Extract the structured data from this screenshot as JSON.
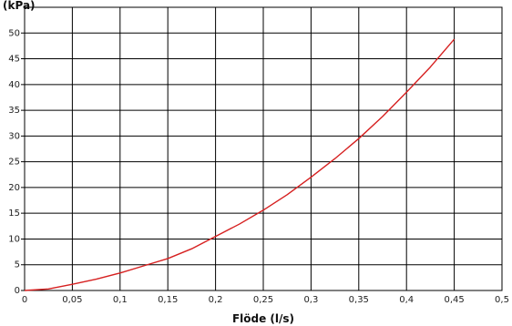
{
  "chart_data": {
    "type": "line",
    "ylabel": "(kPa)",
    "xlabel": "Flöde (l/s)",
    "xlim": [
      0,
      0.5
    ],
    "ylim": [
      0,
      55
    ],
    "grid": true,
    "x_ticks": [
      {
        "value": 0,
        "label": "0"
      },
      {
        "value": 0.05,
        "label": "0,05"
      },
      {
        "value": 0.1,
        "label": "0,1"
      },
      {
        "value": 0.15,
        "label": "0,15"
      },
      {
        "value": 0.2,
        "label": "0,2"
      },
      {
        "value": 0.25,
        "label": "0,25"
      },
      {
        "value": 0.3,
        "label": "0,3"
      },
      {
        "value": 0.35,
        "label": "0,35"
      },
      {
        "value": 0.4,
        "label": "0,4"
      },
      {
        "value": 0.45,
        "label": "0,45"
      },
      {
        "value": 0.5,
        "label": "0,5"
      }
    ],
    "y_ticks": [
      {
        "value": 0,
        "label": "0"
      },
      {
        "value": 5,
        "label": "5"
      },
      {
        "value": 10,
        "label": "10"
      },
      {
        "value": 15,
        "label": "15"
      },
      {
        "value": 20,
        "label": "20"
      },
      {
        "value": 25,
        "label": "25"
      },
      {
        "value": 30,
        "label": "30"
      },
      {
        "value": 35,
        "label": "35"
      },
      {
        "value": 40,
        "label": "40"
      },
      {
        "value": 45,
        "label": "45"
      },
      {
        "value": 50,
        "label": "50"
      }
    ],
    "series": [
      {
        "color": "#d62020",
        "x": [
          0,
          0.025,
          0.05,
          0.075,
          0.1,
          0.125,
          0.15,
          0.175,
          0.2,
          0.225,
          0.25,
          0.275,
          0.3,
          0.325,
          0.35,
          0.375,
          0.4,
          0.425,
          0.45
        ],
        "y": [
          0,
          0.3,
          1.2,
          2.2,
          3.4,
          4.8,
          6.2,
          8.1,
          10.5,
          12.9,
          15.6,
          18.6,
          22.0,
          25.6,
          29.5,
          33.8,
          38.5,
          43.4,
          48.8
        ]
      }
    ]
  }
}
